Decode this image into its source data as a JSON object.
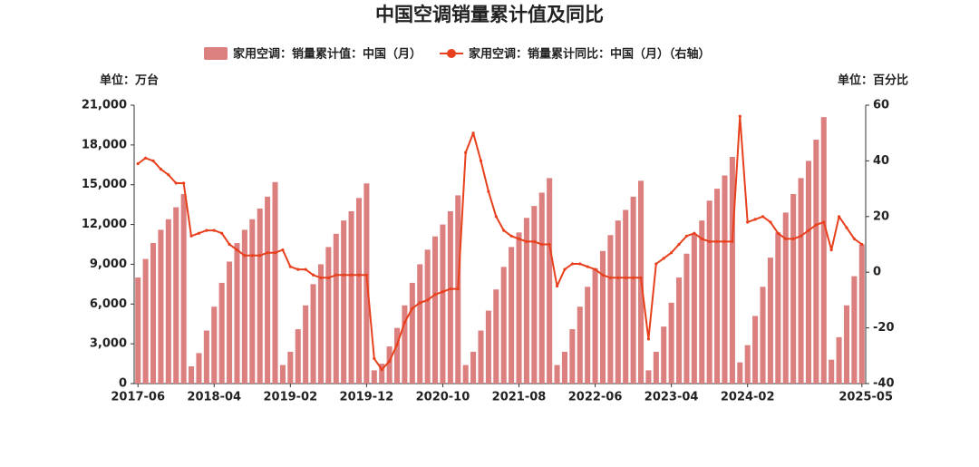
{
  "chart_data": {
    "type": "bar-line",
    "title": "中国空调销量累计值及同比",
    "y_unit": "单位：万台",
    "y2_unit": "单位：百分比",
    "categories": [
      "2017-06",
      null,
      null,
      null,
      null,
      null,
      null,
      null,
      null,
      null,
      "2018-04",
      null,
      null,
      null,
      null,
      null,
      null,
      null,
      null,
      null,
      "2019-02",
      null,
      null,
      null,
      null,
      null,
      null,
      null,
      null,
      null,
      "2019-12",
      null,
      null,
      null,
      null,
      null,
      null,
      null,
      null,
      null,
      "2020-10",
      null,
      null,
      null,
      null,
      null,
      null,
      null,
      null,
      null,
      "2021-08",
      null,
      null,
      null,
      null,
      null,
      null,
      null,
      null,
      null,
      "2022-06",
      null,
      null,
      null,
      null,
      null,
      null,
      null,
      null,
      null,
      "2023-04",
      null,
      null,
      null,
      null,
      null,
      null,
      null,
      null,
      null,
      "2024-02",
      null,
      null,
      null,
      null,
      null,
      null,
      null,
      null,
      null,
      null,
      null,
      null,
      null,
      null,
      "2025-05"
    ],
    "series": [
      {
        "name": "家用空调：销量累计值：中国（月）",
        "type": "bar",
        "color": "#dc7f7f",
        "values": [
          8000,
          9400,
          10600,
          11600,
          12400,
          13300,
          14300,
          1300,
          2300,
          4000,
          5800,
          7600,
          9200,
          10600,
          11600,
          12400,
          13200,
          14100,
          15200,
          1400,
          2400,
          4100,
          5900,
          7500,
          9000,
          10300,
          11300,
          12300,
          13000,
          14000,
          15100,
          1000,
          1500,
          2800,
          4200,
          5900,
          7600,
          9000,
          10100,
          11100,
          12000,
          13000,
          14200,
          1400,
          2400,
          4000,
          5500,
          7100,
          8800,
          10300,
          11400,
          12500,
          13400,
          14400,
          15500,
          1400,
          2400,
          4100,
          5800,
          7300,
          8700,
          10000,
          11200,
          12300,
          13100,
          14100,
          15300,
          1000,
          2400,
          4300,
          6100,
          8000,
          9800,
          11300,
          12300,
          13800,
          14700,
          15700,
          17100,
          1600,
          2900,
          5100,
          7300,
          9500,
          11400,
          12900,
          14300,
          15500,
          16800,
          18400,
          20100,
          1800,
          3500,
          5900,
          8100,
          10500
        ]
      },
      {
        "name": "家用空调：销量累计同比：中国（月）（右轴）",
        "type": "line",
        "axis": "y2",
        "color": "#e8401c",
        "values": [
          39,
          41,
          40,
          37,
          35,
          32,
          32,
          13,
          14,
          15,
          15,
          14,
          10,
          8,
          6,
          6,
          6,
          7,
          7,
          8,
          2,
          1,
          1,
          -1,
          -2,
          -2,
          -1,
          -1,
          -1,
          -1,
          -1,
          -31,
          -35,
          -32,
          -26,
          -18,
          -13,
          -11,
          -10,
          -8,
          -7,
          -6,
          -6,
          43,
          50,
          40,
          29,
          20,
          15,
          13,
          12,
          11,
          11,
          10,
          10,
          -5,
          1,
          3,
          3,
          2,
          1,
          -1,
          -2,
          -2,
          -2,
          -2,
          -2,
          -24,
          3,
          5,
          7,
          10,
          13,
          14,
          12,
          11,
          11,
          11,
          11,
          56,
          18,
          19,
          20,
          18,
          14,
          12,
          12,
          13,
          15,
          17,
          18,
          8,
          20,
          16,
          12,
          10
        ]
      }
    ],
    "ylim": [
      0,
      21000
    ],
    "yticks": [
      0,
      {
        "value": 3000,
        "label": "3,000"
      },
      {
        "value": 6000,
        "label": "6,000"
      },
      {
        "value": 9000,
        "label": "9,000"
      },
      {
        "value": 12000,
        "label": "12,000"
      },
      {
        "value": 15000,
        "label": "15,000"
      },
      {
        "value": 18000,
        "label": "18,000"
      },
      {
        "value": 21000,
        "label": "21,000"
      }
    ],
    "y2lim": [
      -40,
      60
    ],
    "y2ticks": [
      -40,
      -20,
      0,
      20,
      40,
      60
    ],
    "legend": "top"
  }
}
